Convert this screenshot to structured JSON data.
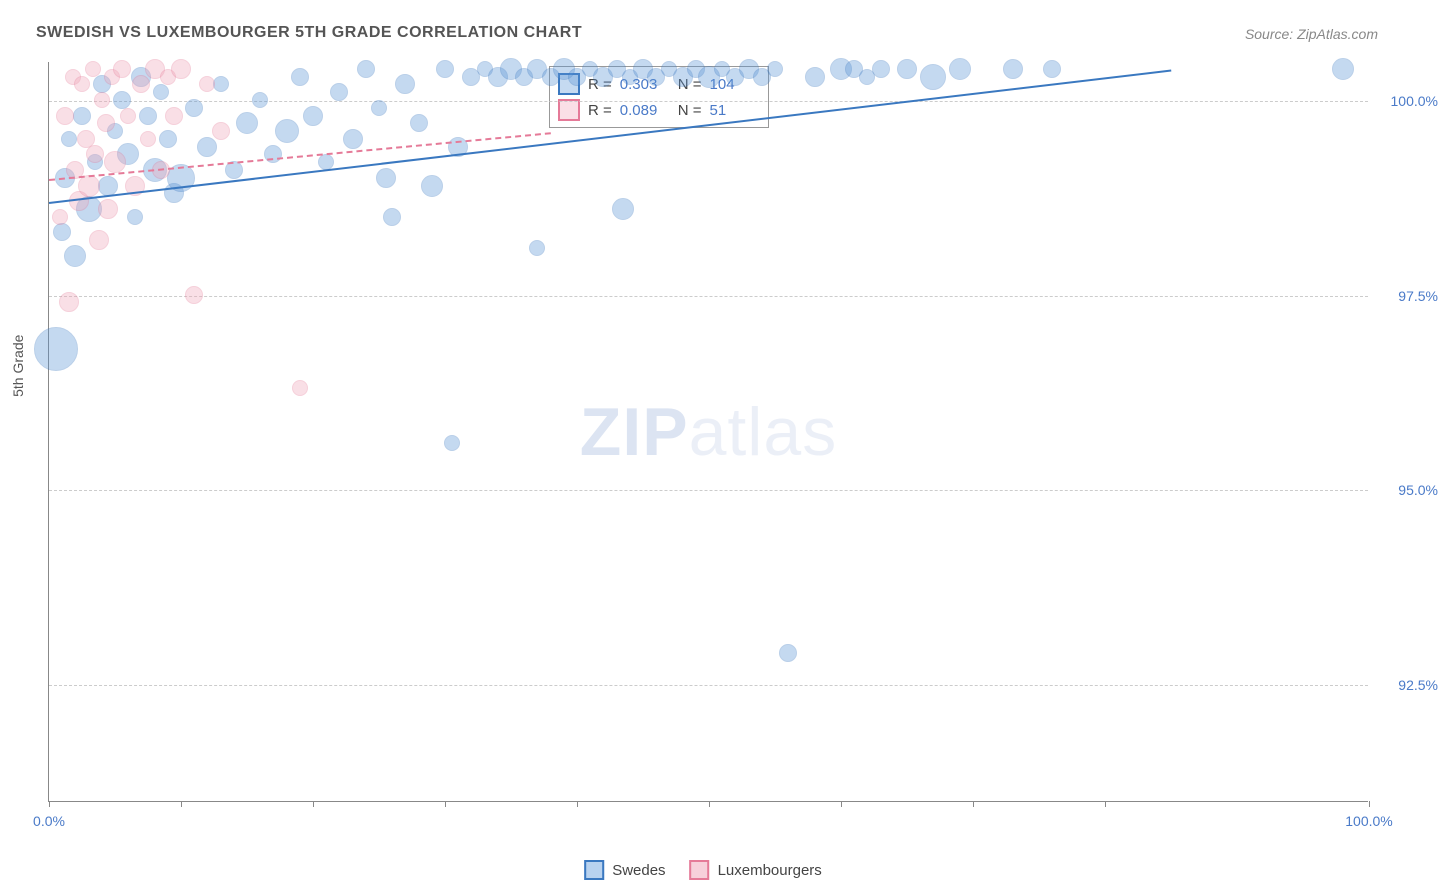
{
  "title": "SWEDISH VS LUXEMBOURGER 5TH GRADE CORRELATION CHART",
  "source_label": "Source: ZipAtlas.com",
  "ylabel": "5th Grade",
  "watermark": {
    "bold": "ZIP",
    "light": "atlas"
  },
  "chart": {
    "type": "scatter",
    "background_color": "#ffffff",
    "grid_color": "#cccccc",
    "axis_color": "#888888",
    "tick_label_color": "#4a7ac8",
    "tick_fontsize": 14,
    "title_fontsize": 16,
    "title_color": "#555555",
    "xlim": [
      0,
      100
    ],
    "ylim": [
      91.0,
      100.5
    ],
    "yticks": [
      {
        "value": 100.0,
        "label": "100.0%"
      },
      {
        "value": 97.5,
        "label": "97.5%"
      },
      {
        "value": 95.0,
        "label": "95.0%"
      },
      {
        "value": 92.5,
        "label": "92.5%"
      }
    ],
    "xticks": [
      0,
      10,
      20,
      30,
      40,
      50,
      60,
      70,
      80,
      100
    ],
    "xtick_labels": {
      "0": "0.0%",
      "100": "100.0%"
    },
    "marker_style": "circle",
    "marker_opacity": 0.35,
    "marker_stroke_opacity": 0.8,
    "trendline_width": 2,
    "series": [
      {
        "name": "Swedes",
        "fill_color": "#5a94d6",
        "stroke_color": "#3a78c0",
        "R": 0.303,
        "N": 104,
        "trendline": {
          "x1": 0,
          "y1": 98.7,
          "x2": 85,
          "y2": 100.4,
          "dash": "solid"
        },
        "points": [
          {
            "x": 0.5,
            "y": 96.8,
            "r": 22
          },
          {
            "x": 1,
            "y": 98.3,
            "r": 9
          },
          {
            "x": 1.2,
            "y": 99.0,
            "r": 10
          },
          {
            "x": 1.5,
            "y": 99.5,
            "r": 8
          },
          {
            "x": 2,
            "y": 98.0,
            "r": 11
          },
          {
            "x": 2.5,
            "y": 99.8,
            "r": 9
          },
          {
            "x": 3,
            "y": 98.6,
            "r": 13
          },
          {
            "x": 3.5,
            "y": 99.2,
            "r": 8
          },
          {
            "x": 4,
            "y": 100.2,
            "r": 9
          },
          {
            "x": 4.5,
            "y": 98.9,
            "r": 10
          },
          {
            "x": 5,
            "y": 99.6,
            "r": 8
          },
          {
            "x": 5.5,
            "y": 100.0,
            "r": 9
          },
          {
            "x": 6,
            "y": 99.3,
            "r": 11
          },
          {
            "x": 6.5,
            "y": 98.5,
            "r": 8
          },
          {
            "x": 7,
            "y": 100.3,
            "r": 10
          },
          {
            "x": 7.5,
            "y": 99.8,
            "r": 9
          },
          {
            "x": 8,
            "y": 99.1,
            "r": 12
          },
          {
            "x": 8.5,
            "y": 100.1,
            "r": 8
          },
          {
            "x": 9,
            "y": 99.5,
            "r": 9
          },
          {
            "x": 9.5,
            "y": 98.8,
            "r": 10
          },
          {
            "x": 10,
            "y": 99.0,
            "r": 14
          },
          {
            "x": 11,
            "y": 99.9,
            "r": 9
          },
          {
            "x": 12,
            "y": 99.4,
            "r": 10
          },
          {
            "x": 13,
            "y": 100.2,
            "r": 8
          },
          {
            "x": 14,
            "y": 99.1,
            "r": 9
          },
          {
            "x": 15,
            "y": 99.7,
            "r": 11
          },
          {
            "x": 16,
            "y": 100.0,
            "r": 8
          },
          {
            "x": 17,
            "y": 99.3,
            "r": 9
          },
          {
            "x": 18,
            "y": 99.6,
            "r": 12
          },
          {
            "x": 19,
            "y": 100.3,
            "r": 9
          },
          {
            "x": 20,
            "y": 99.8,
            "r": 10
          },
          {
            "x": 21,
            "y": 99.2,
            "r": 8
          },
          {
            "x": 22,
            "y": 100.1,
            "r": 9
          },
          {
            "x": 23,
            "y": 99.5,
            "r": 10
          },
          {
            "x": 24,
            "y": 100.4,
            "r": 9
          },
          {
            "x": 25,
            "y": 99.9,
            "r": 8
          },
          {
            "x": 25.5,
            "y": 99.0,
            "r": 10
          },
          {
            "x": 26,
            "y": 98.5,
            "r": 9
          },
          {
            "x": 27,
            "y": 100.2,
            "r": 10
          },
          {
            "x": 28,
            "y": 99.7,
            "r": 9
          },
          {
            "x": 29,
            "y": 98.9,
            "r": 11
          },
          {
            "x": 30,
            "y": 100.4,
            "r": 9
          },
          {
            "x": 30.5,
            "y": 95.6,
            "r": 8
          },
          {
            "x": 31,
            "y": 99.4,
            "r": 10
          },
          {
            "x": 32,
            "y": 100.3,
            "r": 9
          },
          {
            "x": 33,
            "y": 100.4,
            "r": 8
          },
          {
            "x": 34,
            "y": 100.3,
            "r": 10
          },
          {
            "x": 35,
            "y": 100.4,
            "r": 11
          },
          {
            "x": 36,
            "y": 100.3,
            "r": 9
          },
          {
            "x": 37,
            "y": 98.1,
            "r": 8
          },
          {
            "x": 37,
            "y": 100.4,
            "r": 10
          },
          {
            "x": 38,
            "y": 100.3,
            "r": 9
          },
          {
            "x": 39,
            "y": 100.4,
            "r": 11
          },
          {
            "x": 40,
            "y": 100.3,
            "r": 9
          },
          {
            "x": 41,
            "y": 100.4,
            "r": 8
          },
          {
            "x": 42,
            "y": 100.3,
            "r": 10
          },
          {
            "x": 43,
            "y": 100.4,
            "r": 9
          },
          {
            "x": 43.5,
            "y": 98.6,
            "r": 11
          },
          {
            "x": 44,
            "y": 100.3,
            "r": 8
          },
          {
            "x": 45,
            "y": 100.4,
            "r": 10
          },
          {
            "x": 46,
            "y": 100.3,
            "r": 9
          },
          {
            "x": 47,
            "y": 100.4,
            "r": 8
          },
          {
            "x": 48,
            "y": 100.3,
            "r": 10
          },
          {
            "x": 49,
            "y": 100.4,
            "r": 9
          },
          {
            "x": 50,
            "y": 100.3,
            "r": 11
          },
          {
            "x": 51,
            "y": 100.4,
            "r": 8
          },
          {
            "x": 52,
            "y": 100.3,
            "r": 9
          },
          {
            "x": 53,
            "y": 100.4,
            "r": 10
          },
          {
            "x": 54,
            "y": 100.3,
            "r": 9
          },
          {
            "x": 55,
            "y": 100.4,
            "r": 8
          },
          {
            "x": 56,
            "y": 92.9,
            "r": 9
          },
          {
            "x": 58,
            "y": 100.3,
            "r": 10
          },
          {
            "x": 60,
            "y": 100.4,
            "r": 11
          },
          {
            "x": 61,
            "y": 100.4,
            "r": 9
          },
          {
            "x": 62,
            "y": 100.3,
            "r": 8
          },
          {
            "x": 63,
            "y": 100.4,
            "r": 9
          },
          {
            "x": 65,
            "y": 100.4,
            "r": 10
          },
          {
            "x": 67,
            "y": 100.3,
            "r": 13
          },
          {
            "x": 69,
            "y": 100.4,
            "r": 11
          },
          {
            "x": 73,
            "y": 100.4,
            "r": 10
          },
          {
            "x": 76,
            "y": 100.4,
            "r": 9
          },
          {
            "x": 98,
            "y": 100.4,
            "r": 11
          }
        ]
      },
      {
        "name": "Luxembourgers",
        "fill_color": "#f0a6b8",
        "stroke_color": "#e57a98",
        "R": 0.089,
        "N": 51,
        "trendline": {
          "x1": 0,
          "y1": 99.0,
          "x2": 38,
          "y2": 99.6,
          "dash": "dashed"
        },
        "points": [
          {
            "x": 0.8,
            "y": 98.5,
            "r": 8
          },
          {
            "x": 1.2,
            "y": 99.8,
            "r": 9
          },
          {
            "x": 1.5,
            "y": 97.4,
            "r": 10
          },
          {
            "x": 1.8,
            "y": 100.3,
            "r": 8
          },
          {
            "x": 2,
            "y": 99.1,
            "r": 9
          },
          {
            "x": 2.3,
            "y": 98.7,
            "r": 10
          },
          {
            "x": 2.5,
            "y": 100.2,
            "r": 8
          },
          {
            "x": 2.8,
            "y": 99.5,
            "r": 9
          },
          {
            "x": 3,
            "y": 98.9,
            "r": 11
          },
          {
            "x": 3.3,
            "y": 100.4,
            "r": 8
          },
          {
            "x": 3.5,
            "y": 99.3,
            "r": 9
          },
          {
            "x": 3.8,
            "y": 98.2,
            "r": 10
          },
          {
            "x": 4,
            "y": 100.0,
            "r": 8
          },
          {
            "x": 4.3,
            "y": 99.7,
            "r": 9
          },
          {
            "x": 4.5,
            "y": 98.6,
            "r": 10
          },
          {
            "x": 4.8,
            "y": 100.3,
            "r": 8
          },
          {
            "x": 5,
            "y": 99.2,
            "r": 11
          },
          {
            "x": 5.5,
            "y": 100.4,
            "r": 9
          },
          {
            "x": 6,
            "y": 99.8,
            "r": 8
          },
          {
            "x": 6.5,
            "y": 98.9,
            "r": 10
          },
          {
            "x": 7,
            "y": 100.2,
            "r": 9
          },
          {
            "x": 7.5,
            "y": 99.5,
            "r": 8
          },
          {
            "x": 8,
            "y": 100.4,
            "r": 10
          },
          {
            "x": 8.5,
            "y": 99.1,
            "r": 9
          },
          {
            "x": 9,
            "y": 100.3,
            "r": 8
          },
          {
            "x": 9.5,
            "y": 99.8,
            "r": 9
          },
          {
            "x": 10,
            "y": 100.4,
            "r": 10
          },
          {
            "x": 11,
            "y": 97.5,
            "r": 9
          },
          {
            "x": 12,
            "y": 100.2,
            "r": 8
          },
          {
            "x": 13,
            "y": 99.6,
            "r": 9
          },
          {
            "x": 19,
            "y": 96.3,
            "r": 8
          }
        ]
      }
    ],
    "bottom_legend_items": [
      {
        "label": "Swedes",
        "fill": "#b8d2ef",
        "stroke": "#3a78c0"
      },
      {
        "label": "Luxembourgers",
        "fill": "#f7d0db",
        "stroke": "#e57a98"
      }
    ],
    "stats_legend_labels": {
      "R": "R =",
      "N": "N ="
    }
  }
}
